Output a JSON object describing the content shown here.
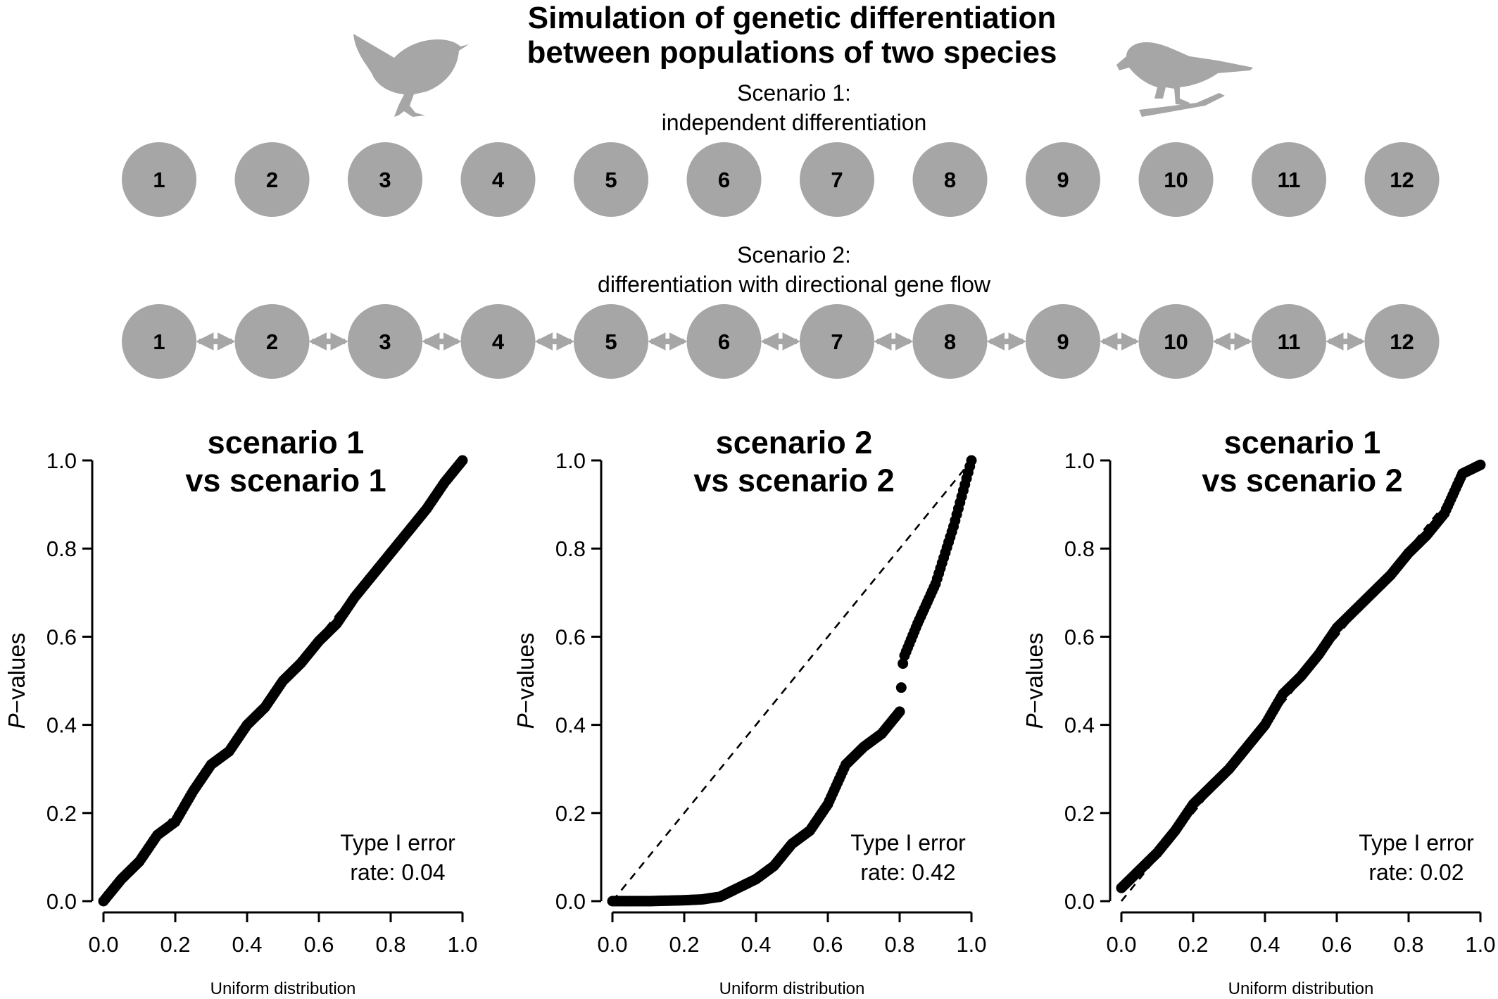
{
  "figure": {
    "title_line1": "Simulation of genetic differentiation",
    "title_line2": "between populations of two species"
  },
  "scenario1": {
    "label_line1": "Scenario 1:",
    "label_line2": "independent differentiation",
    "nodes": [
      "1",
      "2",
      "3",
      "4",
      "5",
      "6",
      "7",
      "8",
      "9",
      "10",
      "11",
      "12"
    ]
  },
  "scenario2": {
    "label_line1": "Scenario 2:",
    "label_line2": "differentiation with directional gene flow",
    "nodes": [
      "1",
      "2",
      "3",
      "4",
      "5",
      "6",
      "7",
      "8",
      "9",
      "10",
      "11",
      "12"
    ]
  },
  "colors": {
    "node_fill": "#a6a6a6",
    "bird": "#a6a6a6",
    "points": "#000000"
  },
  "icons": [
    "wren-bird-icon",
    "perched-bird-icon"
  ],
  "chart_data": [
    {
      "type": "scatter",
      "title_line1": "scenario 1",
      "title_line2": "vs scenario 1",
      "xlabel": "Uniform distribution",
      "ylabel_italic": "P",
      "ylabel_rest": "−values",
      "xlim": [
        0,
        1
      ],
      "ylim": [
        0,
        1
      ],
      "xticks": [
        "0.0",
        "0.2",
        "0.4",
        "0.6",
        "0.8",
        "1.0"
      ],
      "yticks": [
        "0.0",
        "0.2",
        "0.4",
        "0.6",
        "0.8",
        "1.0"
      ],
      "reference_line": "y = x (dashed)",
      "annotation_line1": "Type I error",
      "annotation_line2": "rate: 0.04",
      "type_i_error_rate": 0.04,
      "curve": [
        [
          0,
          0
        ],
        [
          0.05,
          0.05
        ],
        [
          0.1,
          0.09
        ],
        [
          0.15,
          0.15
        ],
        [
          0.2,
          0.18
        ],
        [
          0.25,
          0.25
        ],
        [
          0.3,
          0.31
        ],
        [
          0.35,
          0.34
        ],
        [
          0.4,
          0.4
        ],
        [
          0.45,
          0.44
        ],
        [
          0.5,
          0.5
        ],
        [
          0.55,
          0.54
        ],
        [
          0.6,
          0.59
        ],
        [
          0.65,
          0.63
        ],
        [
          0.7,
          0.69
        ],
        [
          0.75,
          0.74
        ],
        [
          0.8,
          0.79
        ],
        [
          0.85,
          0.84
        ],
        [
          0.9,
          0.89
        ],
        [
          0.95,
          0.95
        ],
        [
          1.0,
          1.0
        ]
      ]
    },
    {
      "type": "scatter",
      "title_line1": "scenario 2",
      "title_line2": "vs scenario 2",
      "xlabel": "Uniform distribution",
      "ylabel_italic": "P",
      "ylabel_rest": "−values",
      "xlim": [
        0,
        1
      ],
      "ylim": [
        0,
        1
      ],
      "xticks": [
        "0.0",
        "0.2",
        "0.4",
        "0.6",
        "0.8",
        "1.0"
      ],
      "yticks": [
        "0.0",
        "0.2",
        "0.4",
        "0.6",
        "0.8",
        "1.0"
      ],
      "reference_line": "y = x (dashed)",
      "annotation_line1": "Type I error",
      "annotation_line2": "rate: 0.42",
      "type_i_error_rate": 0.42,
      "curve": [
        [
          0,
          0
        ],
        [
          0.1,
          0.0
        ],
        [
          0.2,
          0.002
        ],
        [
          0.25,
          0.004
        ],
        [
          0.3,
          0.01
        ],
        [
          0.35,
          0.03
        ],
        [
          0.4,
          0.05
        ],
        [
          0.45,
          0.08
        ],
        [
          0.5,
          0.13
        ],
        [
          0.55,
          0.16
        ],
        [
          0.6,
          0.22
        ],
        [
          0.65,
          0.31
        ],
        [
          0.7,
          0.35
        ],
        [
          0.75,
          0.38
        ],
        [
          0.8,
          0.43
        ],
        [
          0.81,
          0.55
        ],
        [
          0.85,
          0.63
        ],
        [
          0.9,
          0.72
        ],
        [
          0.95,
          0.85
        ],
        [
          1.0,
          1.0
        ]
      ]
    },
    {
      "type": "scatter",
      "title_line1": "scenario 1",
      "title_line2": "vs scenario 2",
      "xlabel": "Uniform distribution",
      "ylabel_italic": "P",
      "ylabel_rest": "−values",
      "xlim": [
        0,
        1
      ],
      "ylim": [
        0,
        1
      ],
      "xticks": [
        "0.0",
        "0.2",
        "0.4",
        "0.6",
        "0.8",
        "1.0"
      ],
      "yticks": [
        "0.0",
        "0.2",
        "0.4",
        "0.6",
        "0.8",
        "1.0"
      ],
      "reference_line": "y = x (dashed)",
      "annotation_line1": "Type I error",
      "annotation_line2": "rate: 0.02",
      "type_i_error_rate": 0.02,
      "curve": [
        [
          0,
          0.03
        ],
        [
          0.05,
          0.07
        ],
        [
          0.1,
          0.11
        ],
        [
          0.15,
          0.16
        ],
        [
          0.2,
          0.22
        ],
        [
          0.25,
          0.26
        ],
        [
          0.3,
          0.3
        ],
        [
          0.35,
          0.35
        ],
        [
          0.4,
          0.4
        ],
        [
          0.45,
          0.47
        ],
        [
          0.5,
          0.51
        ],
        [
          0.55,
          0.56
        ],
        [
          0.6,
          0.62
        ],
        [
          0.65,
          0.66
        ],
        [
          0.7,
          0.7
        ],
        [
          0.75,
          0.74
        ],
        [
          0.8,
          0.79
        ],
        [
          0.85,
          0.83
        ],
        [
          0.9,
          0.88
        ],
        [
          0.95,
          0.97
        ],
        [
          1.0,
          0.99
        ]
      ]
    }
  ]
}
